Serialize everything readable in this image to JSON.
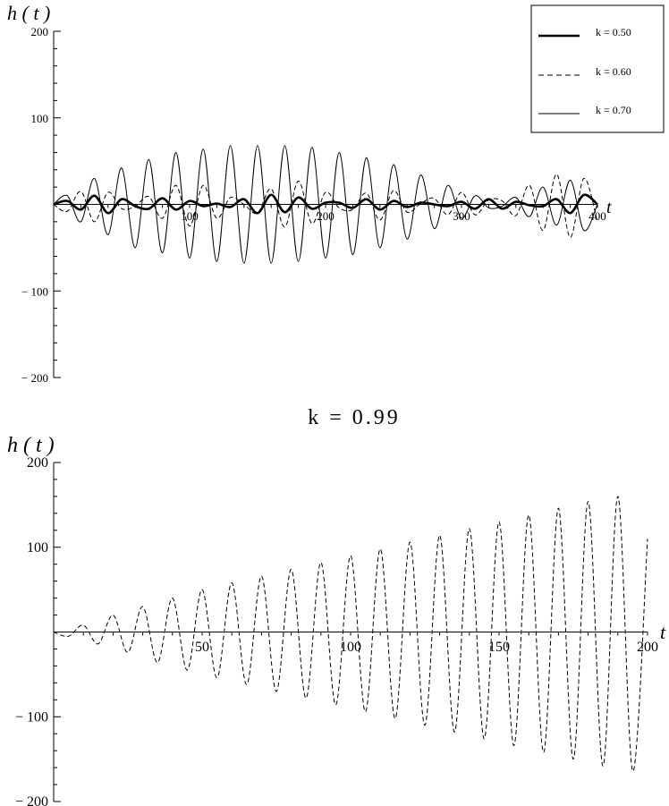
{
  "chart_data": [
    {
      "type": "line",
      "title": "",
      "xlabel": "t",
      "ylabel": "h ( t )",
      "xlim": [
        0,
        400
      ],
      "ylim": [
        -200,
        200
      ],
      "x_ticks": [
        100,
        200,
        300,
        400
      ],
      "x_tick_labels": [
        "100",
        "200",
        "300",
        "400"
      ],
      "y_ticks": [
        -200,
        -100,
        100,
        200
      ],
      "y_tick_labels": [
        "− 200",
        "− 100",
        "100",
        "200"
      ],
      "grid": false,
      "legend_position": "top-right",
      "series": [
        {
          "name": "k = 0.50",
          "style": "solid-thick",
          "x": [
            0,
            10,
            20,
            30,
            40,
            50,
            60,
            70,
            80,
            90,
            100,
            110,
            120,
            130,
            140,
            150,
            160,
            170,
            180,
            190,
            200,
            210,
            220,
            230,
            240,
            250,
            260,
            270,
            280,
            290,
            300,
            310,
            320,
            330,
            340,
            350,
            360,
            370,
            380,
            390,
            400
          ],
          "y": [
            0,
            4,
            -6,
            10,
            -10,
            6,
            -2,
            -5,
            7,
            -6,
            4,
            -2,
            1,
            -3,
            6,
            -10,
            11,
            -9,
            8,
            -5,
            2,
            2,
            -4,
            6,
            -6,
            4,
            -3,
            2,
            0,
            -2,
            3,
            -5,
            6,
            -5,
            3,
            -1,
            -2,
            6,
            -10,
            11,
            0
          ]
        },
        {
          "name": "k = 0.60",
          "style": "dashed",
          "x": [
            0,
            10,
            20,
            30,
            40,
            50,
            60,
            70,
            80,
            90,
            100,
            110,
            120,
            130,
            140,
            150,
            160,
            170,
            180,
            190,
            200,
            210,
            220,
            230,
            240,
            250,
            260,
            270,
            280,
            290,
            300,
            310,
            320,
            330,
            340,
            350,
            360,
            370,
            380,
            390,
            400
          ],
          "y": [
            0,
            -8,
            15,
            -20,
            14,
            -5,
            -2,
            9,
            -16,
            22,
            -25,
            22,
            -16,
            8,
            0,
            -10,
            18,
            -26,
            27,
            -22,
            14,
            -4,
            -6,
            13,
            -18,
            16,
            -9,
            1,
            7,
            -12,
            14,
            -12,
            5,
            4,
            -13,
            22,
            -30,
            35,
            -38,
            30,
            -20
          ]
        },
        {
          "name": "k = 0.70",
          "style": "solid",
          "x": [
            0,
            10,
            20,
            30,
            40,
            50,
            60,
            70,
            80,
            90,
            100,
            110,
            120,
            130,
            140,
            150,
            160,
            170,
            180,
            190,
            200,
            210,
            220,
            230,
            240,
            250,
            260,
            270,
            280,
            290,
            300,
            310,
            320,
            330,
            340,
            350,
            360,
            370,
            380,
            390,
            400
          ],
          "y": [
            0,
            10,
            -20,
            30,
            -35,
            42,
            -50,
            52,
            -56,
            60,
            -62,
            64,
            -66,
            68,
            -68,
            68,
            -68,
            68,
            -66,
            66,
            -62,
            60,
            -58,
            54,
            -50,
            46,
            -40,
            34,
            -28,
            22,
            -16,
            10,
            -4,
            -2,
            8,
            -14,
            20,
            -24,
            28,
            -30,
            0
          ]
        }
      ]
    },
    {
      "type": "line",
      "title": "k = 0.99",
      "xlabel": "t",
      "ylabel": "h ( t )",
      "xlim": [
        0,
        200
      ],
      "ylim": [
        -200,
        200
      ],
      "x_ticks": [
        50,
        100,
        150,
        200
      ],
      "x_tick_labels": [
        "50",
        "100",
        "150",
        "200"
      ],
      "y_ticks": [
        -200,
        -100,
        100,
        200
      ],
      "y_tick_labels": [
        "− 200",
        "− 100",
        "100",
        "200"
      ],
      "grid": false,
      "series": [
        {
          "style": "dashed",
          "x": [
            0,
            5,
            10,
            15,
            20,
            25,
            30,
            35,
            40,
            45,
            50,
            55,
            60,
            65,
            70,
            75,
            80,
            85,
            90,
            95,
            100,
            105,
            110,
            115,
            120,
            125,
            130,
            135,
            140,
            145,
            150,
            155,
            160,
            165,
            170,
            175,
            180,
            185,
            190,
            195,
            200
          ],
          "y": [
            0,
            -5,
            8,
            -14,
            20,
            -24,
            30,
            -36,
            40,
            -45,
            50,
            -54,
            58,
            -62,
            66,
            -70,
            74,
            -78,
            82,
            -86,
            90,
            -94,
            98,
            -102,
            106,
            -110,
            114,
            -118,
            122,
            -126,
            130,
            -134,
            138,
            -142,
            146,
            -150,
            154,
            -158,
            160,
            -164,
            110
          ]
        }
      ]
    }
  ]
}
